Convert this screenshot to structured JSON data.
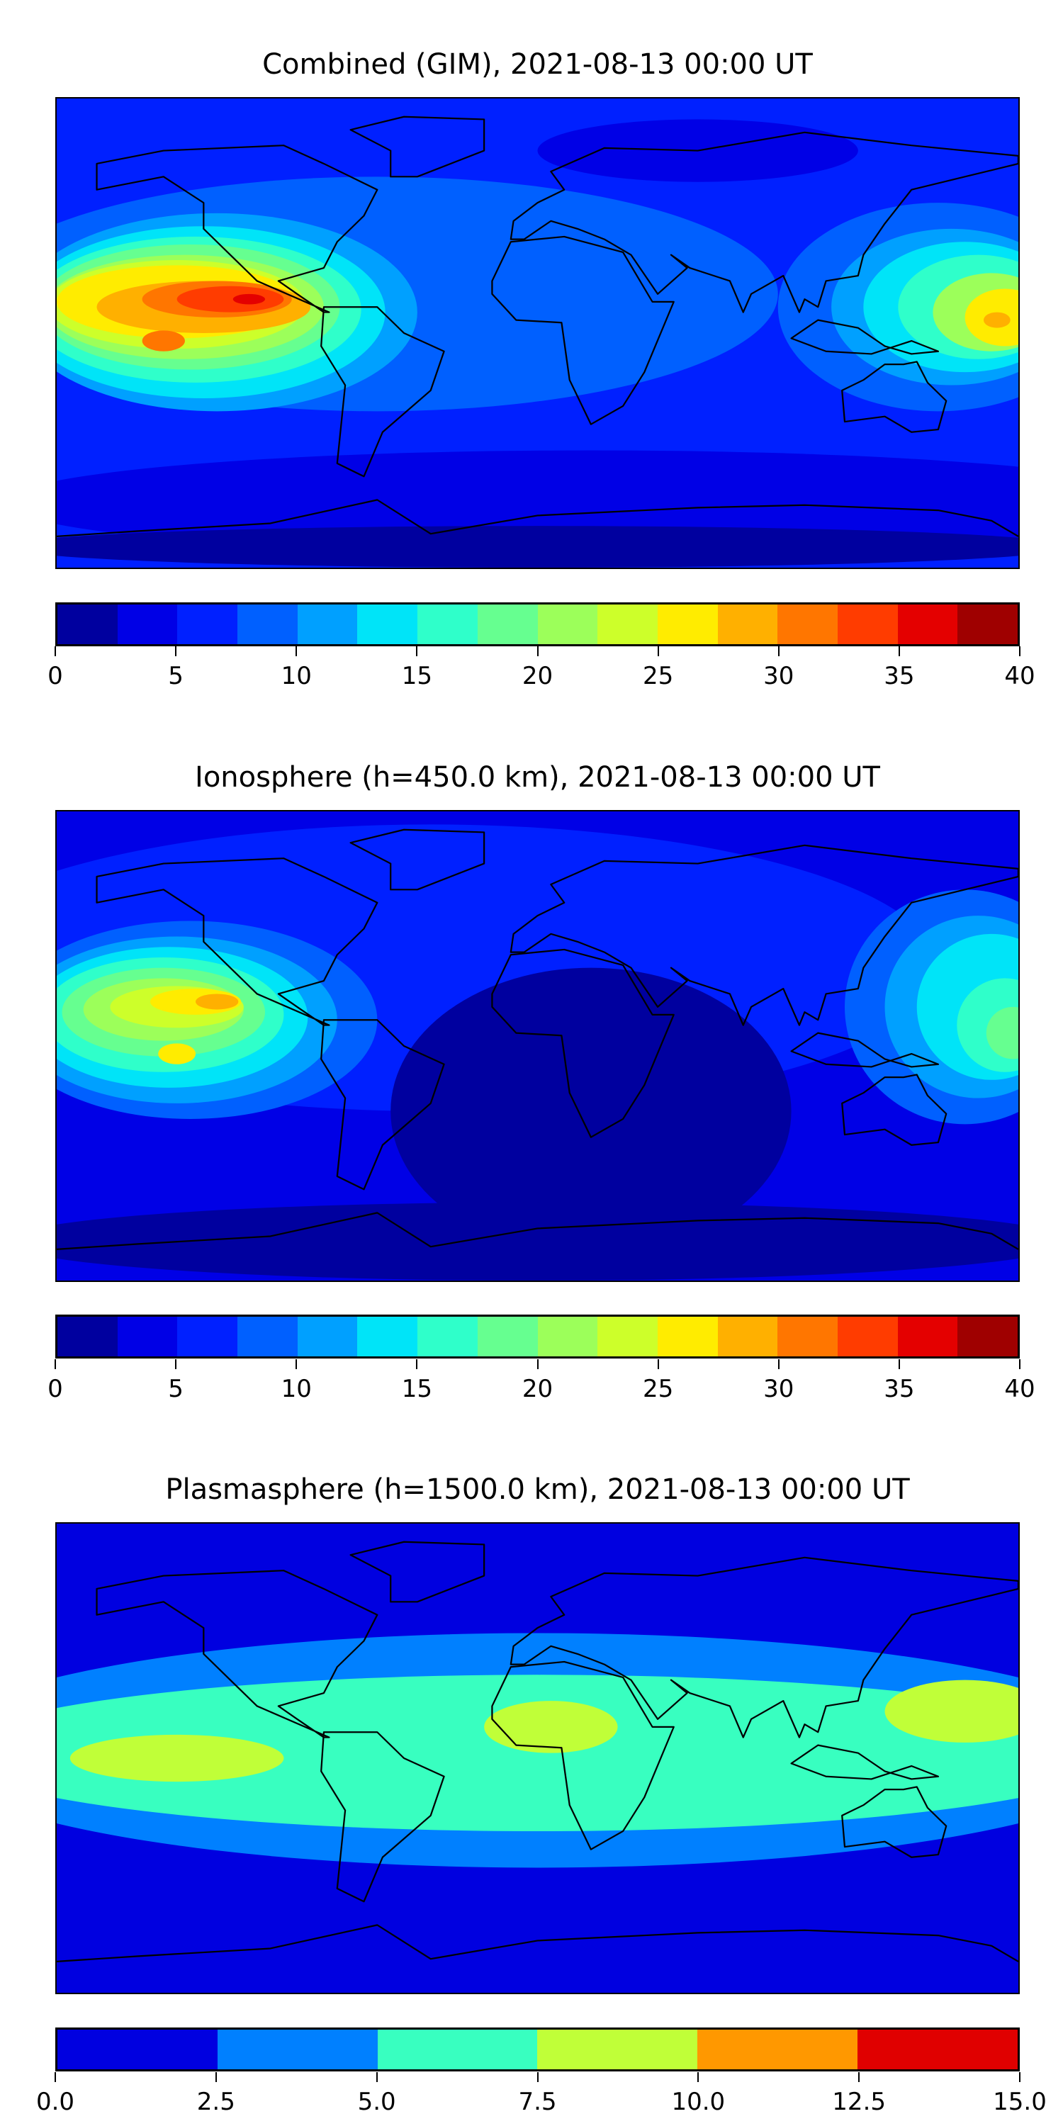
{
  "chart_data": [
    {
      "type": "heatmap",
      "title": "Combined (GIM), 2021-08-13 00:00 UT",
      "lon_range": [
        -180,
        180
      ],
      "lat_range": [
        -90,
        90
      ],
      "levels": [
        0,
        2.5,
        5,
        7.5,
        10,
        12.5,
        15,
        17.5,
        20,
        22.5,
        25,
        27.5,
        30,
        32.5,
        35,
        37.5,
        40
      ],
      "colors": [
        "#00009f",
        "#0000e6",
        "#0020ff",
        "#0060ff",
        "#00a0ff",
        "#00e4f8",
        "#2fffca",
        "#66ff90",
        "#9cff5a",
        "#cdff2a",
        "#ffec00",
        "#ffb000",
        "#ff7600",
        "#ff3c00",
        "#e40000",
        "#9f0000"
      ],
      "ticks": [
        "0",
        "5",
        "10",
        "15",
        "20",
        "25",
        "30",
        "35",
        "40"
      ],
      "background_level": 2,
      "features": [
        {
          "level": 3,
          "lon": -60,
          "lat": 15,
          "rx": 150,
          "ry": 45
        },
        {
          "level": 1,
          "lon": 20,
          "lat": -65,
          "rx": 220,
          "ry": 20
        },
        {
          "level": 1,
          "lon": 60,
          "lat": 70,
          "rx": 60,
          "ry": 12
        },
        {
          "level": 0,
          "lon": 0,
          "lat": -82,
          "rx": 200,
          "ry": 8
        },
        {
          "level": 3,
          "lon": 150,
          "lat": 10,
          "rx": 60,
          "ry": 40
        },
        {
          "level": 4,
          "lon": 155,
          "lat": 10,
          "rx": 45,
          "ry": 30
        },
        {
          "level": 5,
          "lon": 160,
          "lat": 10,
          "rx": 38,
          "ry": 25
        },
        {
          "level": 6,
          "lon": 165,
          "lat": 10,
          "rx": 30,
          "ry": 20
        },
        {
          "level": 8,
          "lon": 170,
          "lat": 8,
          "rx": 22,
          "ry": 15
        },
        {
          "level": 10,
          "lon": 175,
          "lat": 6,
          "rx": 15,
          "ry": 11
        },
        {
          "level": 11,
          "lon": 172,
          "lat": 5,
          "rx": 5,
          "ry": 3
        },
        {
          "level": 4,
          "lon": -120,
          "lat": 8,
          "rx": 75,
          "ry": 38
        },
        {
          "level": 5,
          "lon": -125,
          "lat": 8,
          "rx": 68,
          "ry": 33
        },
        {
          "level": 6,
          "lon": -128,
          "lat": 9,
          "rx": 62,
          "ry": 28
        },
        {
          "level": 7,
          "lon": -130,
          "lat": 10,
          "rx": 56,
          "ry": 24
        },
        {
          "level": 8,
          "lon": -132,
          "lat": 10,
          "rx": 52,
          "ry": 20
        },
        {
          "level": 9,
          "lon": -135,
          "lat": 11,
          "rx": 48,
          "ry": 17
        },
        {
          "level": 10,
          "lon": -135,
          "lat": 12,
          "rx": 45,
          "ry": 14
        },
        {
          "level": 11,
          "lon": -125,
          "lat": 10,
          "rx": 40,
          "ry": 10
        },
        {
          "level": 12,
          "lon": -120,
          "lat": 13,
          "rx": 28,
          "ry": 7
        },
        {
          "level": 12,
          "lon": -140,
          "lat": -3,
          "rx": 8,
          "ry": 4
        },
        {
          "level": 13,
          "lon": -115,
          "lat": 13,
          "rx": 20,
          "ry": 5
        },
        {
          "level": 14,
          "lon": -108,
          "lat": 13,
          "rx": 6,
          "ry": 2
        }
      ]
    },
    {
      "type": "heatmap",
      "title": "Ionosphere  (h=450.0 km), 2021-08-13 00:00 UT",
      "lon_range": [
        -180,
        180
      ],
      "lat_range": [
        -90,
        90
      ],
      "levels": [
        0,
        2.5,
        5,
        7.5,
        10,
        12.5,
        15,
        17.5,
        20,
        22.5,
        25,
        27.5,
        30,
        32.5,
        35,
        37.5,
        40
      ],
      "colors": [
        "#00009f",
        "#0000e6",
        "#0020ff",
        "#0060ff",
        "#00a0ff",
        "#00e4f8",
        "#2fffca",
        "#66ff90",
        "#9cff5a",
        "#cdff2a",
        "#ffec00",
        "#ffb000",
        "#ff7600",
        "#ff3c00",
        "#e40000",
        "#9f0000"
      ],
      "ticks": [
        "0",
        "5",
        "10",
        "15",
        "20",
        "25",
        "30",
        "35",
        "40"
      ],
      "background_level": 1,
      "features": [
        {
          "level": 2,
          "lon": -40,
          "lat": 30,
          "rx": 190,
          "ry": 55
        },
        {
          "level": 0,
          "lon": 20,
          "lat": -25,
          "rx": 75,
          "ry": 55
        },
        {
          "level": 0,
          "lon": 0,
          "lat": -75,
          "rx": 200,
          "ry": 15
        },
        {
          "level": 3,
          "lon": 160,
          "lat": 15,
          "rx": 45,
          "ry": 45
        },
        {
          "level": 4,
          "lon": 165,
          "lat": 15,
          "rx": 35,
          "ry": 35
        },
        {
          "level": 5,
          "lon": 170,
          "lat": 15,
          "rx": 28,
          "ry": 28
        },
        {
          "level": 6,
          "lon": 175,
          "lat": 8,
          "rx": 18,
          "ry": 18
        },
        {
          "level": 7,
          "lon": 178,
          "lat": 5,
          "rx": 10,
          "ry": 10
        },
        {
          "level": 3,
          "lon": -130,
          "lat": 10,
          "rx": 70,
          "ry": 38
        },
        {
          "level": 4,
          "lon": -135,
          "lat": 10,
          "rx": 60,
          "ry": 32
        },
        {
          "level": 5,
          "lon": -138,
          "lat": 11,
          "rx": 52,
          "ry": 27
        },
        {
          "level": 6,
          "lon": -140,
          "lat": 12,
          "rx": 45,
          "ry": 22
        },
        {
          "level": 7,
          "lon": -140,
          "lat": 13,
          "rx": 38,
          "ry": 17
        },
        {
          "level": 8,
          "lon": -140,
          "lat": 14,
          "rx": 30,
          "ry": 12
        },
        {
          "level": 9,
          "lon": -135,
          "lat": 15,
          "rx": 25,
          "ry": 8
        },
        {
          "level": 10,
          "lon": -128,
          "lat": 17,
          "rx": 17,
          "ry": 5
        },
        {
          "level": 10,
          "lon": -135,
          "lat": -3,
          "rx": 7,
          "ry": 4
        },
        {
          "level": 11,
          "lon": -120,
          "lat": 17,
          "rx": 8,
          "ry": 3
        }
      ]
    },
    {
      "type": "heatmap",
      "title": "Plasmasphere (h=1500.0 km), 2021-08-13 00:00 UT",
      "lon_range": [
        -180,
        180
      ],
      "lat_range": [
        -90,
        90
      ],
      "levels": [
        0,
        2.5,
        5,
        7.5,
        10,
        12.5,
        15
      ],
      "colors": [
        "#0000e0",
        "#0080ff",
        "#38ffc0",
        "#c0ff38",
        "#ff9800",
        "#e00000"
      ],
      "ticks": [
        "0.0",
        "2.5",
        "5.0",
        "7.5",
        "10.0",
        "12.5",
        "15.0"
      ],
      "background_level": 0,
      "features": [
        {
          "level": 1,
          "lon": 0,
          "lat": 3,
          "rx": 230,
          "ry": 45
        },
        {
          "level": 2,
          "lon": 0,
          "lat": 2,
          "rx": 220,
          "ry": 30
        },
        {
          "level": 3,
          "lon": -135,
          "lat": 0,
          "rx": 40,
          "ry": 9
        },
        {
          "level": 3,
          "lon": 5,
          "lat": 12,
          "rx": 25,
          "ry": 10
        },
        {
          "level": 3,
          "lon": 160,
          "lat": 18,
          "rx": 30,
          "ry": 12
        }
      ]
    }
  ]
}
